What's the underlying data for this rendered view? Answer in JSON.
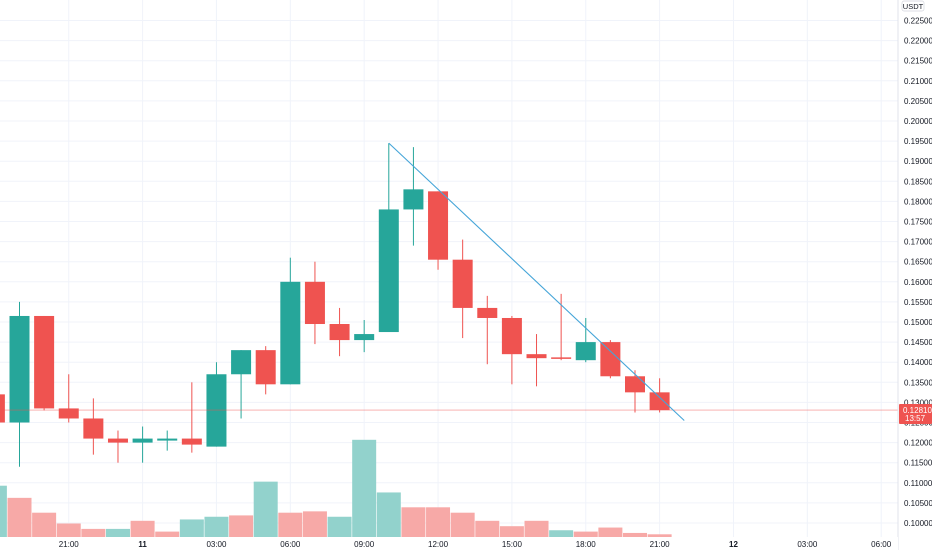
{
  "currency_unit": "USDT",
  "colors": {
    "up": "#26a69a",
    "down": "#ef5350",
    "up_volume": "#92d2cc",
    "down_volume": "#f7a9a7",
    "trendline": "#45a5d8",
    "grid": "#f0f3fa",
    "axis_text": "#131722"
  },
  "current_price": {
    "label": "0.12810",
    "countdown": "13:57"
  },
  "chart_data": {
    "type": "candlestick",
    "y_tick_labels": [
      "0.22500",
      "0.22000",
      "0.21500",
      "0.21000",
      "0.20500",
      "0.20000",
      "0.19500",
      "0.19000",
      "0.18500",
      "0.18000",
      "0.17500",
      "0.17000",
      "0.16500",
      "0.16000",
      "0.15500",
      "0.15000",
      "0.14500",
      "0.14000",
      "0.13500",
      "0.13000",
      "0.12500",
      "0.12000",
      "0.11500",
      "0.11000",
      "0.10500",
      "0.10000"
    ],
    "y_ticks": [
      0.225,
      0.22,
      0.215,
      0.21,
      0.205,
      0.2,
      0.195,
      0.19,
      0.185,
      0.18,
      0.175,
      0.17,
      0.165,
      0.16,
      0.155,
      0.15,
      0.145,
      0.14,
      0.135,
      0.13,
      0.125,
      0.12,
      0.115,
      0.11,
      0.105,
      0.1
    ],
    "x_tick_labels": [
      "21:00",
      "11",
      "03:00",
      "06:00",
      "09:00",
      "12:00",
      "15:00",
      "18:00",
      "21:00",
      "12",
      "03:00",
      "06:00"
    ],
    "x_tick_hours": [
      21,
      24,
      27,
      30,
      33,
      36,
      39,
      42,
      45,
      48,
      51,
      54
    ],
    "bar_hours": 1,
    "candles": [
      {
        "t": 17,
        "o": 0.14,
        "h": 0.14,
        "l": 0.126,
        "c": 0.132
      },
      {
        "t": 18,
        "o": 0.132,
        "h": 0.135,
        "l": 0.124,
        "c": 0.125
      },
      {
        "t": 19,
        "o": 0.125,
        "h": 0.155,
        "l": 0.114,
        "c": 0.1515
      },
      {
        "t": 20,
        "o": 0.1515,
        "h": 0.1515,
        "l": 0.128,
        "c": 0.1285
      },
      {
        "t": 21,
        "o": 0.1285,
        "h": 0.137,
        "l": 0.125,
        "c": 0.126
      },
      {
        "t": 22,
        "o": 0.126,
        "h": 0.131,
        "l": 0.117,
        "c": 0.121
      },
      {
        "t": 23,
        "o": 0.121,
        "h": 0.123,
        "l": 0.115,
        "c": 0.12
      },
      {
        "t": 24,
        "o": 0.12,
        "h": 0.124,
        "l": 0.115,
        "c": 0.121
      },
      {
        "t": 25,
        "o": 0.1205,
        "h": 0.123,
        "l": 0.118,
        "c": 0.121
      },
      {
        "t": 26,
        "o": 0.121,
        "h": 0.135,
        "l": 0.1175,
        "c": 0.1195
      },
      {
        "t": 27,
        "o": 0.119,
        "h": 0.14,
        "l": 0.119,
        "c": 0.137
      },
      {
        "t": 28,
        "o": 0.137,
        "h": 0.143,
        "l": 0.126,
        "c": 0.143
      },
      {
        "t": 29,
        "o": 0.143,
        "h": 0.144,
        "l": 0.132,
        "c": 0.1345
      },
      {
        "t": 30,
        "o": 0.1345,
        "h": 0.166,
        "l": 0.1345,
        "c": 0.16
      },
      {
        "t": 31,
        "o": 0.16,
        "h": 0.165,
        "l": 0.1445,
        "c": 0.1495
      },
      {
        "t": 32,
        "o": 0.1495,
        "h": 0.1535,
        "l": 0.1415,
        "c": 0.1455
      },
      {
        "t": 33,
        "o": 0.1455,
        "h": 0.1505,
        "l": 0.1425,
        "c": 0.147
      },
      {
        "t": 34,
        "o": 0.1475,
        "h": 0.1945,
        "l": 0.1475,
        "c": 0.178
      },
      {
        "t": 35,
        "o": 0.178,
        "h": 0.1935,
        "l": 0.169,
        "c": 0.183
      },
      {
        "t": 36,
        "o": 0.1825,
        "h": 0.1825,
        "l": 0.163,
        "c": 0.1655
      },
      {
        "t": 37,
        "o": 0.1655,
        "h": 0.1705,
        "l": 0.146,
        "c": 0.1535
      },
      {
        "t": 38,
        "o": 0.1535,
        "h": 0.1565,
        "l": 0.1395,
        "c": 0.151
      },
      {
        "t": 39,
        "o": 0.151,
        "h": 0.1515,
        "l": 0.1345,
        "c": 0.142
      },
      {
        "t": 40,
        "o": 0.142,
        "h": 0.147,
        "l": 0.134,
        "c": 0.141
      },
      {
        "t": 41,
        "o": 0.1412,
        "h": 0.157,
        "l": 0.1405,
        "c": 0.141
      },
      {
        "t": 42,
        "o": 0.1405,
        "h": 0.151,
        "l": 0.14,
        "c": 0.145
      },
      {
        "t": 43,
        "o": 0.145,
        "h": 0.1455,
        "l": 0.136,
        "c": 0.1365
      },
      {
        "t": 44,
        "o": 0.1365,
        "h": 0.138,
        "l": 0.1275,
        "c": 0.1325
      },
      {
        "t": 45,
        "o": 0.1325,
        "h": 0.136,
        "l": 0.1275,
        "c": 0.1281
      }
    ],
    "volumes": [
      {
        "t": 16,
        "v": 0.32,
        "dir": "down"
      },
      {
        "t": 17,
        "v": 0.2,
        "dir": "down"
      },
      {
        "t": 18,
        "v": 0.38,
        "dir": "up"
      },
      {
        "t": 19,
        "v": 0.29,
        "dir": "down"
      },
      {
        "t": 20,
        "v": 0.18,
        "dir": "down"
      },
      {
        "t": 21,
        "v": 0.1,
        "dir": "down"
      },
      {
        "t": 22,
        "v": 0.06,
        "dir": "down"
      },
      {
        "t": 23,
        "v": 0.06,
        "dir": "up"
      },
      {
        "t": 24,
        "v": 0.12,
        "dir": "down"
      },
      {
        "t": 25,
        "v": 0.04,
        "dir": "down"
      },
      {
        "t": 26,
        "v": 0.13,
        "dir": "up"
      },
      {
        "t": 27,
        "v": 0.15,
        "dir": "up"
      },
      {
        "t": 28,
        "v": 0.16,
        "dir": "down"
      },
      {
        "t": 29,
        "v": 0.41,
        "dir": "up"
      },
      {
        "t": 30,
        "v": 0.18,
        "dir": "down"
      },
      {
        "t": 31,
        "v": 0.19,
        "dir": "down"
      },
      {
        "t": 32,
        "v": 0.15,
        "dir": "up"
      },
      {
        "t": 33,
        "v": 0.72,
        "dir": "up"
      },
      {
        "t": 34,
        "v": 0.33,
        "dir": "up"
      },
      {
        "t": 35,
        "v": 0.22,
        "dir": "down"
      },
      {
        "t": 36,
        "v": 0.22,
        "dir": "down"
      },
      {
        "t": 37,
        "v": 0.18,
        "dir": "down"
      },
      {
        "t": 38,
        "v": 0.12,
        "dir": "down"
      },
      {
        "t": 39,
        "v": 0.08,
        "dir": "down"
      },
      {
        "t": 40,
        "v": 0.12,
        "dir": "down"
      },
      {
        "t": 41,
        "v": 0.05,
        "dir": "up"
      },
      {
        "t": 42,
        "v": 0.04,
        "dir": "down"
      },
      {
        "t": 43,
        "v": 0.07,
        "dir": "down"
      },
      {
        "t": 44,
        "v": 0.03,
        "dir": "down"
      },
      {
        "t": 45,
        "v": 0.02,
        "dir": "down"
      }
    ],
    "trendline": {
      "start": {
        "t": 34.0,
        "price": 0.1945
      },
      "end": {
        "t": 46.0,
        "price": 0.1255
      }
    }
  }
}
